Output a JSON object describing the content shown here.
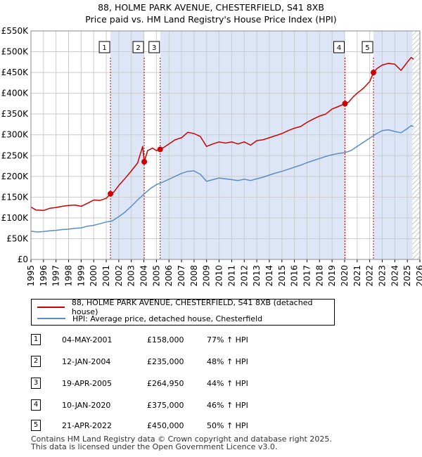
{
  "title_line1": "88, HOLME PARK AVENUE, CHESTERFIELD, S41 8XB",
  "title_line2": "Price paid vs. HM Land Registry's House Price Index (HPI)",
  "colors": {
    "property": "#cc0000",
    "hpi": "#5b8cc8",
    "shade": "#dde6f7",
    "grid": "#cccccc"
  },
  "chart_data": {
    "type": "line",
    "x_range": [
      1995.0,
      2026.0
    ],
    "ylim": [
      0,
      550000
    ],
    "y_ticks": [
      {
        "value": 0,
        "label": "£0"
      },
      {
        "value": 50000,
        "label": "£50K"
      },
      {
        "value": 100000,
        "label": "£100K"
      },
      {
        "value": 150000,
        "label": "£150K"
      },
      {
        "value": 200000,
        "label": "£200K"
      },
      {
        "value": 250000,
        "label": "£250K"
      },
      {
        "value": 300000,
        "label": "£300K"
      },
      {
        "value": 350000,
        "label": "£350K"
      },
      {
        "value": 400000,
        "label": "£400K"
      },
      {
        "value": 450000,
        "label": "£450K"
      },
      {
        "value": 500000,
        "label": "£500K"
      },
      {
        "value": 550000,
        "label": "£550K"
      }
    ],
    "x_ticks": [
      "1995",
      "1996",
      "1997",
      "1998",
      "1999",
      "2000",
      "2001",
      "2002",
      "2003",
      "2004",
      "2005",
      "2006",
      "2007",
      "2008",
      "2009",
      "2010",
      "2011",
      "2012",
      "2013",
      "2014",
      "2015",
      "2016",
      "2017",
      "2018",
      "2019",
      "2020",
      "2021",
      "2022",
      "2023",
      "2024",
      "2025",
      "2026"
    ],
    "shaded_ranges": [
      [
        2001.34,
        2004.03
      ],
      [
        2005.3,
        2020.03
      ],
      [
        2022.3,
        2025.4
      ]
    ],
    "hatched_from": 2025.4,
    "series": [
      {
        "name": "88, HOLME PARK AVENUE, CHESTERFIELD, S41 8XB (detached house)",
        "points": [
          [
            1995.0,
            126000
          ],
          [
            1995.4,
            119000
          ],
          [
            1996.0,
            118000
          ],
          [
            1996.5,
            123000
          ],
          [
            1997.0,
            125000
          ],
          [
            1997.5,
            128000
          ],
          [
            1998.0,
            130000
          ],
          [
            1998.5,
            131000
          ],
          [
            1999.0,
            128000
          ],
          [
            1999.5,
            135000
          ],
          [
            2000.0,
            143000
          ],
          [
            2000.5,
            142000
          ],
          [
            2001.0,
            147000
          ],
          [
            2001.34,
            158000
          ],
          [
            2001.6,
            162000
          ],
          [
            2002.0,
            178000
          ],
          [
            2002.5,
            195000
          ],
          [
            2003.0,
            213000
          ],
          [
            2003.5,
            232000
          ],
          [
            2003.9,
            272000
          ],
          [
            2004.03,
            235000
          ],
          [
            2004.3,
            262000
          ],
          [
            2004.7,
            268000
          ],
          [
            2005.0,
            262000
          ],
          [
            2005.3,
            264950
          ],
          [
            2005.6,
            270000
          ],
          [
            2006.0,
            278000
          ],
          [
            2006.5,
            288000
          ],
          [
            2007.0,
            293000
          ],
          [
            2007.5,
            306000
          ],
          [
            2008.0,
            303000
          ],
          [
            2008.5,
            296000
          ],
          [
            2009.0,
            272000
          ],
          [
            2009.5,
            278000
          ],
          [
            2010.0,
            283000
          ],
          [
            2010.5,
            280000
          ],
          [
            2011.0,
            283000
          ],
          [
            2011.5,
            278000
          ],
          [
            2012.0,
            283000
          ],
          [
            2012.5,
            275000
          ],
          [
            2013.0,
            286000
          ],
          [
            2013.5,
            288000
          ],
          [
            2014.0,
            293000
          ],
          [
            2014.5,
            298000
          ],
          [
            2015.0,
            303000
          ],
          [
            2015.5,
            310000
          ],
          [
            2016.0,
            316000
          ],
          [
            2016.5,
            320000
          ],
          [
            2017.0,
            330000
          ],
          [
            2017.5,
            338000
          ],
          [
            2018.0,
            345000
          ],
          [
            2018.5,
            350000
          ],
          [
            2019.0,
            362000
          ],
          [
            2019.5,
            368000
          ],
          [
            2020.03,
            375000
          ],
          [
            2020.3,
            378000
          ],
          [
            2020.7,
            392000
          ],
          [
            2021.0,
            400000
          ],
          [
            2021.5,
            412000
          ],
          [
            2022.0,
            428000
          ],
          [
            2022.3,
            450000
          ],
          [
            2022.6,
            460000
          ],
          [
            2023.0,
            468000
          ],
          [
            2023.5,
            472000
          ],
          [
            2024.0,
            470000
          ],
          [
            2024.5,
            455000
          ],
          [
            2025.0,
            475000
          ],
          [
            2025.3,
            486000
          ],
          [
            2025.5,
            482000
          ]
        ]
      },
      {
        "name": "HPI: Average price, detached house, Chesterfield",
        "points": [
          [
            1995.0,
            68000
          ],
          [
            1995.5,
            66000
          ],
          [
            1996.0,
            67000
          ],
          [
            1996.5,
            69000
          ],
          [
            1997.0,
            70000
          ],
          [
            1997.5,
            72000
          ],
          [
            1998.0,
            73000
          ],
          [
            1998.5,
            75000
          ],
          [
            1999.0,
            76000
          ],
          [
            1999.5,
            80000
          ],
          [
            2000.0,
            82000
          ],
          [
            2000.5,
            86000
          ],
          [
            2001.0,
            90000
          ],
          [
            2001.5,
            93000
          ],
          [
            2002.0,
            103000
          ],
          [
            2002.5,
            114000
          ],
          [
            2003.0,
            128000
          ],
          [
            2003.5,
            143000
          ],
          [
            2004.0,
            157000
          ],
          [
            2004.5,
            170000
          ],
          [
            2005.0,
            180000
          ],
          [
            2005.5,
            186000
          ],
          [
            2006.0,
            193000
          ],
          [
            2006.5,
            200000
          ],
          [
            2007.0,
            207000
          ],
          [
            2007.5,
            212000
          ],
          [
            2008.0,
            213000
          ],
          [
            2008.5,
            205000
          ],
          [
            2009.0,
            188000
          ],
          [
            2009.5,
            192000
          ],
          [
            2010.0,
            196000
          ],
          [
            2010.5,
            194000
          ],
          [
            2011.0,
            192000
          ],
          [
            2011.5,
            190000
          ],
          [
            2012.0,
            193000
          ],
          [
            2012.5,
            190000
          ],
          [
            2013.0,
            194000
          ],
          [
            2013.5,
            198000
          ],
          [
            2014.0,
            203000
          ],
          [
            2014.5,
            208000
          ],
          [
            2015.0,
            212000
          ],
          [
            2015.5,
            217000
          ],
          [
            2016.0,
            222000
          ],
          [
            2016.5,
            227000
          ],
          [
            2017.0,
            233000
          ],
          [
            2017.5,
            238000
          ],
          [
            2018.0,
            243000
          ],
          [
            2018.5,
            248000
          ],
          [
            2019.0,
            252000
          ],
          [
            2019.5,
            255000
          ],
          [
            2020.0,
            257000
          ],
          [
            2020.5,
            262000
          ],
          [
            2021.0,
            272000
          ],
          [
            2021.5,
            282000
          ],
          [
            2022.0,
            292000
          ],
          [
            2022.5,
            302000
          ],
          [
            2023.0,
            310000
          ],
          [
            2023.5,
            312000
          ],
          [
            2024.0,
            308000
          ],
          [
            2024.5,
            305000
          ],
          [
            2025.0,
            315000
          ],
          [
            2025.3,
            322000
          ],
          [
            2025.5,
            320000
          ]
        ]
      }
    ],
    "sales": [
      {
        "id": "1",
        "x": 2001.34,
        "value": 158000
      },
      {
        "id": "2",
        "x": 2004.03,
        "value": 235000
      },
      {
        "id": "3",
        "x": 2005.3,
        "value": 264950
      },
      {
        "id": "4",
        "x": 2020.03,
        "value": 375000
      },
      {
        "id": "5",
        "x": 2022.3,
        "value": 450000
      }
    ]
  },
  "legend": {
    "property_label": "88, HOLME PARK AVENUE, CHESTERFIELD, S41 8XB (detached house)",
    "hpi_label": "HPI: Average price, detached house, Chesterfield"
  },
  "transactions": [
    {
      "num": "1",
      "date": "04-MAY-2001",
      "price": "£158,000",
      "hpi": "77% ↑ HPI"
    },
    {
      "num": "2",
      "date": "12-JAN-2004",
      "price": "£235,000",
      "hpi": "48% ↑ HPI"
    },
    {
      "num": "3",
      "date": "19-APR-2005",
      "price": "£264,950",
      "hpi": "44% ↑ HPI"
    },
    {
      "num": "4",
      "date": "10-JAN-2020",
      "price": "£375,000",
      "hpi": "46% ↑ HPI"
    },
    {
      "num": "5",
      "date": "21-APR-2022",
      "price": "£450,000",
      "hpi": "50% ↑ HPI"
    }
  ],
  "footer_line1": "Contains HM Land Registry data © Crown copyright and database right 2025.",
  "footer_line2": "This data is licensed under the Open Government Licence v3.0."
}
